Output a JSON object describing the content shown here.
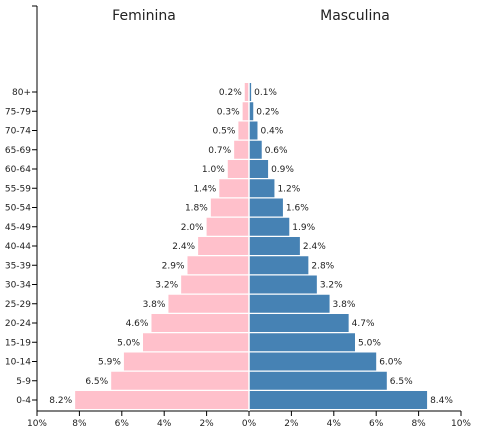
{
  "chart_data": {
    "type": "bar",
    "left_title": "Feminina",
    "right_title": "Masculina",
    "categories": [
      "80+",
      "75-79",
      "70-74",
      "65-69",
      "60-64",
      "55-59",
      "50-54",
      "45-49",
      "40-44",
      "35-39",
      "30-34",
      "25-29",
      "20-24",
      "15-19",
      "10-14",
      "5-9",
      "0-4"
    ],
    "series": [
      {
        "name": "Feminina",
        "color": "#ffc0cb",
        "values": [
          0.2,
          0.3,
          0.5,
          0.7,
          1.0,
          1.4,
          1.8,
          2.0,
          2.4,
          2.9,
          3.2,
          3.8,
          4.6,
          5.0,
          5.9,
          6.5,
          8.2
        ],
        "labels": [
          "0.2%",
          "0.3%",
          "0.5%",
          "0.7%",
          "1.0%",
          "1.4%",
          "1.8%",
          "2.0%",
          "2.4%",
          "2.9%",
          "3.2%",
          "3.8%",
          "4.6%",
          "5.0%",
          "5.9%",
          "6.5%",
          "8.2%"
        ]
      },
      {
        "name": "Masculina",
        "color": "#4682b4",
        "values": [
          0.1,
          0.2,
          0.4,
          0.6,
          0.9,
          1.2,
          1.6,
          1.9,
          2.4,
          2.8,
          3.2,
          3.8,
          4.7,
          5.0,
          6.0,
          6.5,
          8.4
        ],
        "labels": [
          "0.1%",
          "0.2%",
          "0.4%",
          "0.6%",
          "0.9%",
          "1.2%",
          "1.6%",
          "1.9%",
          "2.4%",
          "2.8%",
          "3.2%",
          "3.8%",
          "4.7%",
          "5.0%",
          "6.0%",
          "6.5%",
          "8.4%"
        ]
      }
    ],
    "x_ticks": [
      10,
      8,
      6,
      4,
      2,
      0,
      2,
      4,
      6,
      8,
      10
    ],
    "x_tick_labels": [
      "10%",
      "8%",
      "6%",
      "4%",
      "2%",
      "0%",
      "2%",
      "4%",
      "6%",
      "8%",
      "10%"
    ],
    "xlim": [
      0,
      10
    ],
    "grid": false
  }
}
